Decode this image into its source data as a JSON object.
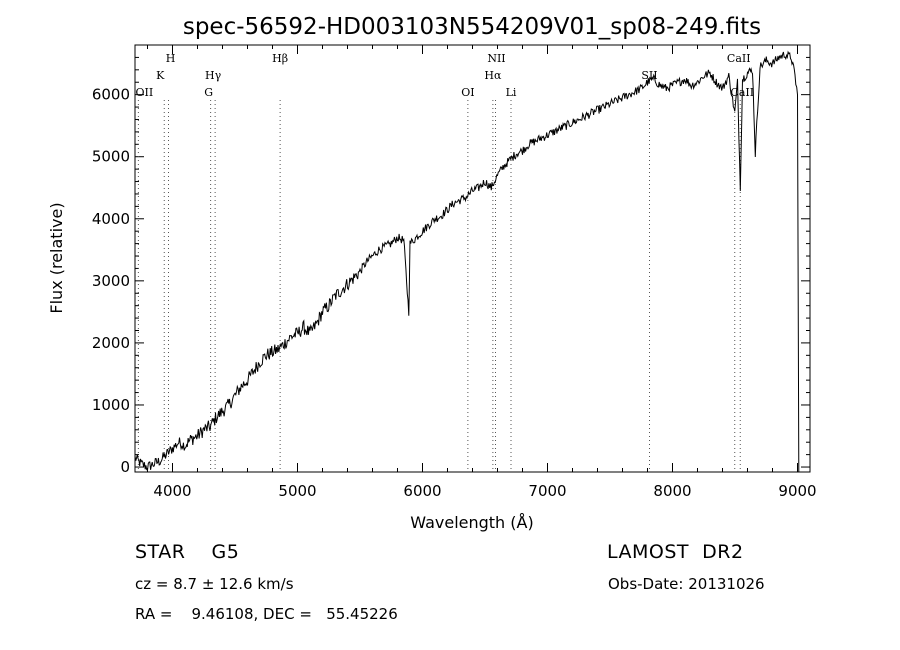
{
  "chart_data": {
    "type": "line",
    "title": "spec-56592-HD003103N554209V01_sp08-249.fits",
    "xlabel": "Wavelength (Å)",
    "ylabel": "Flux (relative)",
    "xlim": [
      3700,
      9100
    ],
    "ylim": [
      -80,
      6800
    ],
    "x_ticks": [
      4000,
      5000,
      6000,
      7000,
      8000,
      9000
    ],
    "y_ticks": [
      0,
      1000,
      2000,
      3000,
      4000,
      5000,
      6000
    ],
    "grid": false,
    "series": [
      {
        "x": [
          3700,
          3750,
          3800,
          3850,
          3900,
          3950,
          4000,
          4050,
          4100,
          4150,
          4200,
          4250,
          4300,
          4350,
          4400,
          4450,
          4500,
          4550,
          4600,
          4650,
          4700,
          4750,
          4800,
          4850,
          4900,
          4950,
          5000,
          5050,
          5100,
          5150,
          5200,
          5250,
          5300,
          5350,
          5400,
          5450,
          5500,
          5550,
          5600,
          5650,
          5700,
          5750,
          5800,
          5850,
          5890,
          5900,
          5950,
          6000,
          6050,
          6100,
          6150,
          6200,
          6250,
          6300,
          6350,
          6400,
          6450,
          6500,
          6550,
          6600,
          6650,
          6700,
          6750,
          6800,
          6850,
          6900,
          6950,
          7000,
          7050,
          7100,
          7150,
          7200,
          7250,
          7300,
          7350,
          7400,
          7450,
          7500,
          7550,
          7600,
          7650,
          7700,
          7750,
          7800,
          7850,
          7900,
          7950,
          8000,
          8050,
          8100,
          8150,
          8200,
          8250,
          8300,
          8350,
          8400,
          8450,
          8498,
          8520,
          8542,
          8560,
          8600,
          8640,
          8662,
          8700,
          8750,
          8800,
          8850,
          8900,
          8950,
          8980,
          9000
        ],
        "y": [
          150,
          50,
          0,
          50,
          100,
          200,
          300,
          400,
          350,
          450,
          500,
          600,
          650,
          800,
          900,
          1000,
          1150,
          1300,
          1400,
          1550,
          1700,
          1800,
          1850,
          1900,
          2000,
          2100,
          2150,
          2250,
          2150,
          2300,
          2500,
          2600,
          2750,
          2850,
          2950,
          3050,
          3150,
          3300,
          3400,
          3500,
          3550,
          3600,
          3700,
          3650,
          2500,
          3600,
          3700,
          3800,
          3900,
          4000,
          4050,
          4150,
          4250,
          4300,
          4350,
          4450,
          4500,
          4600,
          4500,
          4700,
          4850,
          4950,
          5050,
          5100,
          5200,
          5250,
          5300,
          5350,
          5400,
          5450,
          5500,
          5550,
          5600,
          5650,
          5700,
          5750,
          5800,
          5850,
          5900,
          5950,
          6000,
          6050,
          6100,
          6200,
          6250,
          6150,
          6100,
          6150,
          6200,
          6250,
          6150,
          6200,
          6300,
          6350,
          6200,
          6100,
          6300,
          5700,
          6200,
          4500,
          6250,
          6350,
          6400,
          5050,
          6450,
          6550,
          6500,
          6600,
          6650,
          6600,
          6300,
          6000
        ]
      }
    ],
    "lines": [
      {
        "label": "OII",
        "x": 3727
      },
      {
        "label": "H",
        "x": 3968
      },
      {
        "label": "K",
        "x": 3934
      },
      {
        "label": "Hγ",
        "x": 4341
      },
      {
        "label": "G",
        "x": 4305
      },
      {
        "label": "Hβ",
        "x": 4861
      },
      {
        "label": "OI",
        "x": 6363
      },
      {
        "label": "NII",
        "x": 6584
      },
      {
        "label": "Hα",
        "x": 6563
      },
      {
        "label": "Li",
        "x": 6708
      },
      {
        "label": "SII",
        "x": 7816
      },
      {
        "label": "CaII",
        "x": 8498
      },
      {
        "label": "CaII",
        "x": 8542
      }
    ]
  },
  "info": {
    "object": "STAR    G5",
    "survey": "LAMOST  DR2",
    "cz": "cz = 8.7 ± 12.6 km/s",
    "obs_date": "Obs-Date: 20131026",
    "coords": "RA =    9.46108, DEC =   55.45226"
  }
}
